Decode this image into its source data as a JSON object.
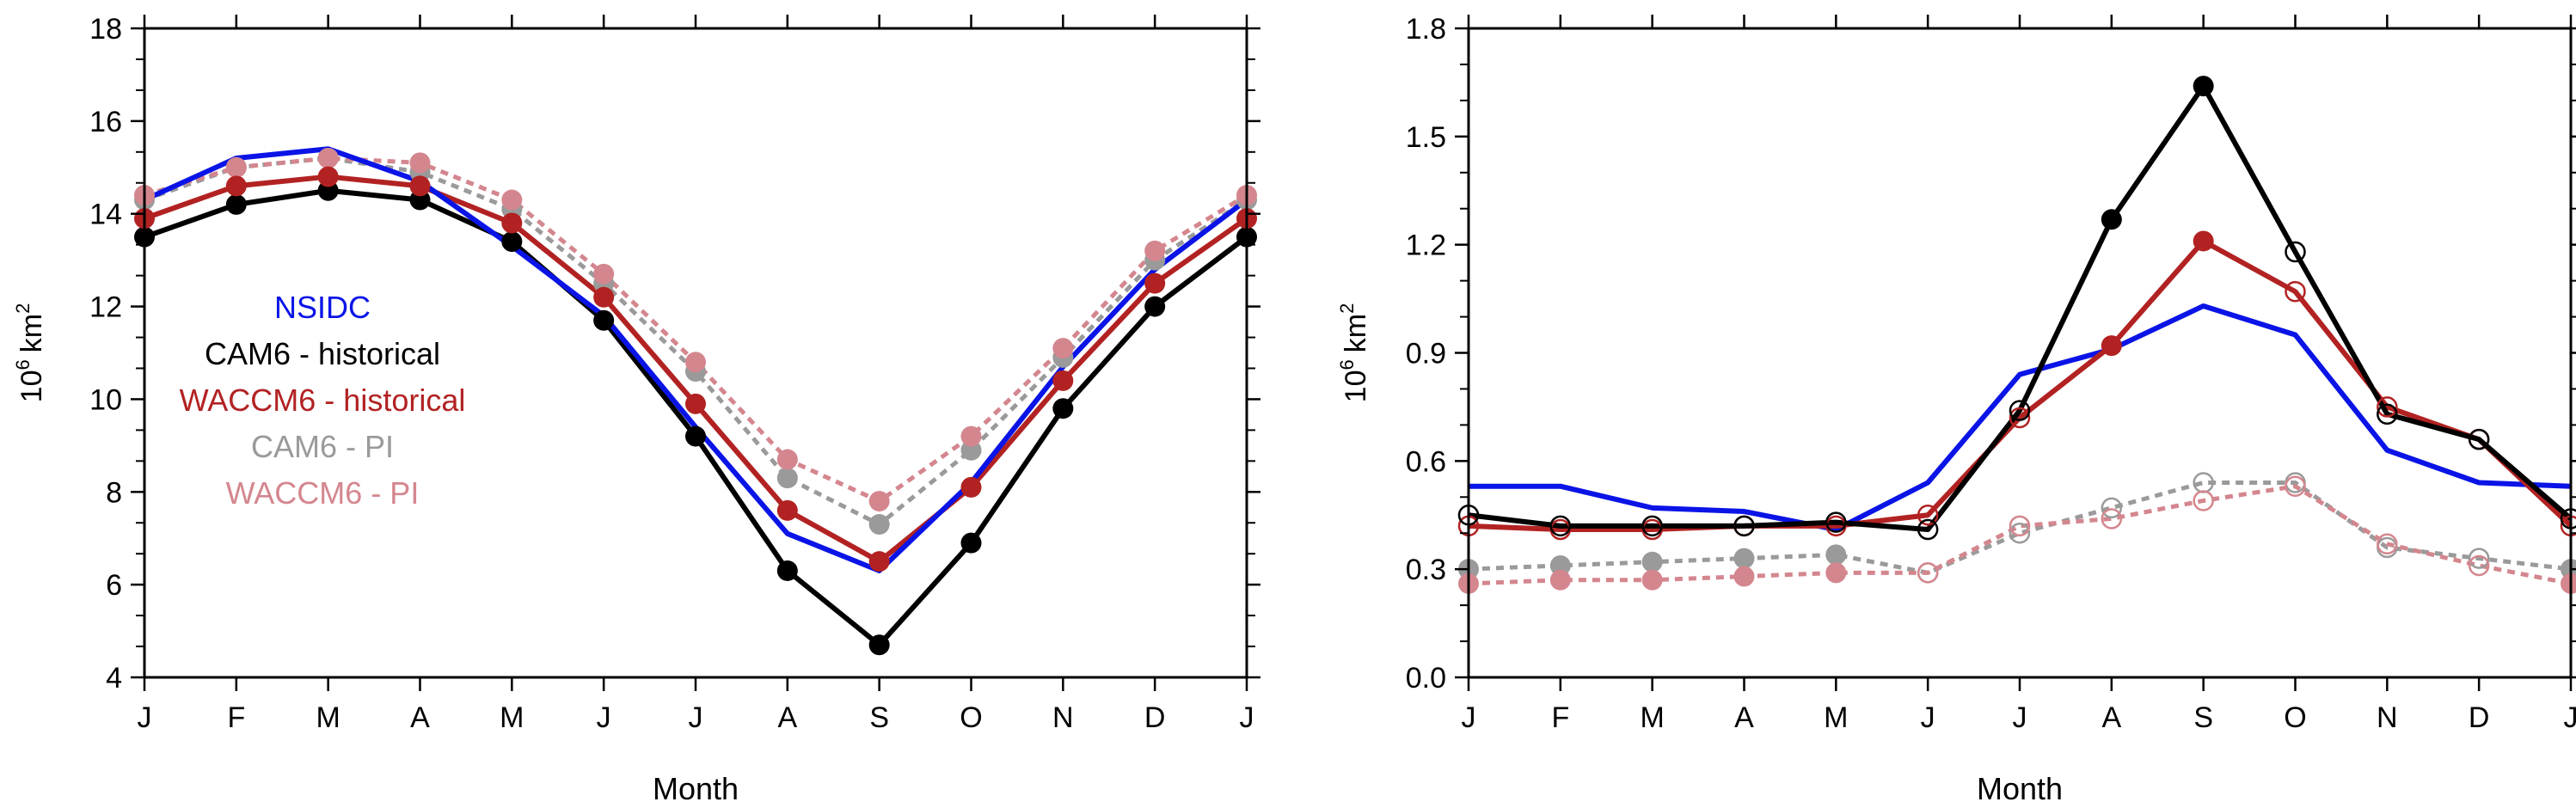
{
  "chart_data": [
    {
      "type": "line",
      "panel": "left",
      "xlabel": "Month",
      "ylabel_base": "10",
      "ylabel_exp": "6",
      "ylabel_unit": "km",
      "ylabel_unit_exp": "2",
      "categories": [
        "J",
        "F",
        "M",
        "A",
        "M",
        "J",
        "J",
        "A",
        "S",
        "O",
        "N",
        "D",
        "J"
      ],
      "ylim": [
        4,
        18
      ],
      "yticks": [
        4,
        6,
        8,
        10,
        12,
        14,
        16,
        18
      ],
      "ytick_labels": [
        "4",
        "6",
        "8",
        "10",
        "12",
        "14",
        "16",
        "18"
      ],
      "grid": false,
      "legend": [
        "NSIDC",
        "CAM6 - historical",
        "WACCM6 - historical",
        "CAM6 - PI",
        "WACCM6 - PI"
      ],
      "legend_placement": "left-middle",
      "series": [
        {
          "name": "CAM6 - PI",
          "color": "#9a9a9a",
          "dashed": true,
          "markers": "filled",
          "values": [
            14.3,
            15.0,
            15.2,
            14.9,
            14.1,
            12.5,
            10.6,
            8.3,
            7.3,
            8.9,
            10.9,
            13.0,
            14.3
          ]
        },
        {
          "name": "WACCM6 - PI",
          "color": "#d4868e",
          "dashed": true,
          "markers": "filled",
          "values": [
            14.4,
            15.0,
            15.2,
            15.1,
            14.3,
            12.7,
            10.8,
            8.7,
            7.8,
            9.2,
            11.1,
            13.2,
            14.4
          ]
        },
        {
          "name": "CAM6 - historical",
          "color": "#000000",
          "dashed": false,
          "markers": "filled",
          "values": [
            13.5,
            14.2,
            14.5,
            14.3,
            13.4,
            11.7,
            9.2,
            6.3,
            4.7,
            6.9,
            9.8,
            12.0,
            13.5
          ]
        },
        {
          "name": "WACCM6 - historical",
          "color": "#b22222",
          "dashed": false,
          "markers": "filled",
          "values": [
            13.9,
            14.6,
            14.8,
            14.6,
            13.8,
            12.2,
            9.9,
            7.6,
            6.5,
            8.1,
            10.4,
            12.5,
            13.9
          ]
        },
        {
          "name": "NSIDC",
          "color": "#0a14e6",
          "dashed": false,
          "markers": "none",
          "values": [
            14.3,
            15.2,
            15.4,
            14.7,
            13.3,
            11.8,
            9.4,
            7.1,
            6.3,
            8.2,
            10.7,
            12.8,
            14.3
          ]
        }
      ]
    },
    {
      "type": "line",
      "panel": "right",
      "xlabel": "Month",
      "ylabel_base": "10",
      "ylabel_exp": "6",
      "ylabel_unit": "km",
      "ylabel_unit_exp": "2",
      "categories": [
        "J",
        "F",
        "M",
        "A",
        "M",
        "J",
        "J",
        "A",
        "S",
        "O",
        "N",
        "D",
        "J"
      ],
      "ylim": [
        0,
        1.8
      ],
      "yticks": [
        0,
        0.3,
        0.6,
        0.9,
        1.2,
        1.5,
        1.8
      ],
      "ytick_labels": [
        "0.0",
        "0.3",
        "0.6",
        "0.9",
        "1.2",
        "1.5",
        "1.8"
      ],
      "grid": false,
      "series": [
        {
          "name": "CAM6 - PI",
          "color": "#9a9a9a",
          "dashed": true,
          "values": [
            0.3,
            0.31,
            0.32,
            0.33,
            0.34,
            0.29,
            0.4,
            0.47,
            0.54,
            0.54,
            0.36,
            0.33,
            0.3
          ],
          "filled_points": [
            true,
            true,
            true,
            true,
            true,
            false,
            false,
            false,
            false,
            false,
            false,
            false,
            true
          ]
        },
        {
          "name": "WACCM6 - PI",
          "color": "#d4868e",
          "dashed": true,
          "values": [
            0.26,
            0.27,
            0.27,
            0.28,
            0.29,
            0.29,
            0.42,
            0.44,
            0.49,
            0.53,
            0.37,
            0.31,
            0.26
          ],
          "filled_points": [
            true,
            true,
            true,
            true,
            true,
            false,
            false,
            false,
            false,
            false,
            false,
            false,
            true
          ]
        },
        {
          "name": "NSIDC",
          "color": "#0a14e6",
          "dashed": false,
          "values": [
            0.53,
            0.53,
            0.47,
            0.46,
            0.41,
            0.54,
            0.84,
            0.91,
            1.03,
            0.95,
            0.63,
            0.54,
            0.53
          ],
          "filled_points": []
        },
        {
          "name": "WACCM6 - historical",
          "color": "#b22222",
          "dashed": false,
          "values": [
            0.42,
            0.41,
            0.41,
            0.42,
            0.42,
            0.45,
            0.72,
            0.92,
            1.21,
            1.07,
            0.75,
            0.66,
            0.42
          ],
          "filled_points": [
            false,
            false,
            false,
            false,
            false,
            false,
            false,
            true,
            true,
            false,
            false,
            false,
            false
          ]
        },
        {
          "name": "CAM6 - historical",
          "color": "#000000",
          "dashed": false,
          "values": [
            0.45,
            0.42,
            0.42,
            0.42,
            0.43,
            0.41,
            0.74,
            1.27,
            1.64,
            1.18,
            0.73,
            0.66,
            0.44
          ],
          "filled_points": [
            false,
            false,
            false,
            false,
            false,
            false,
            false,
            true,
            true,
            false,
            false,
            false,
            false
          ]
        }
      ]
    }
  ]
}
